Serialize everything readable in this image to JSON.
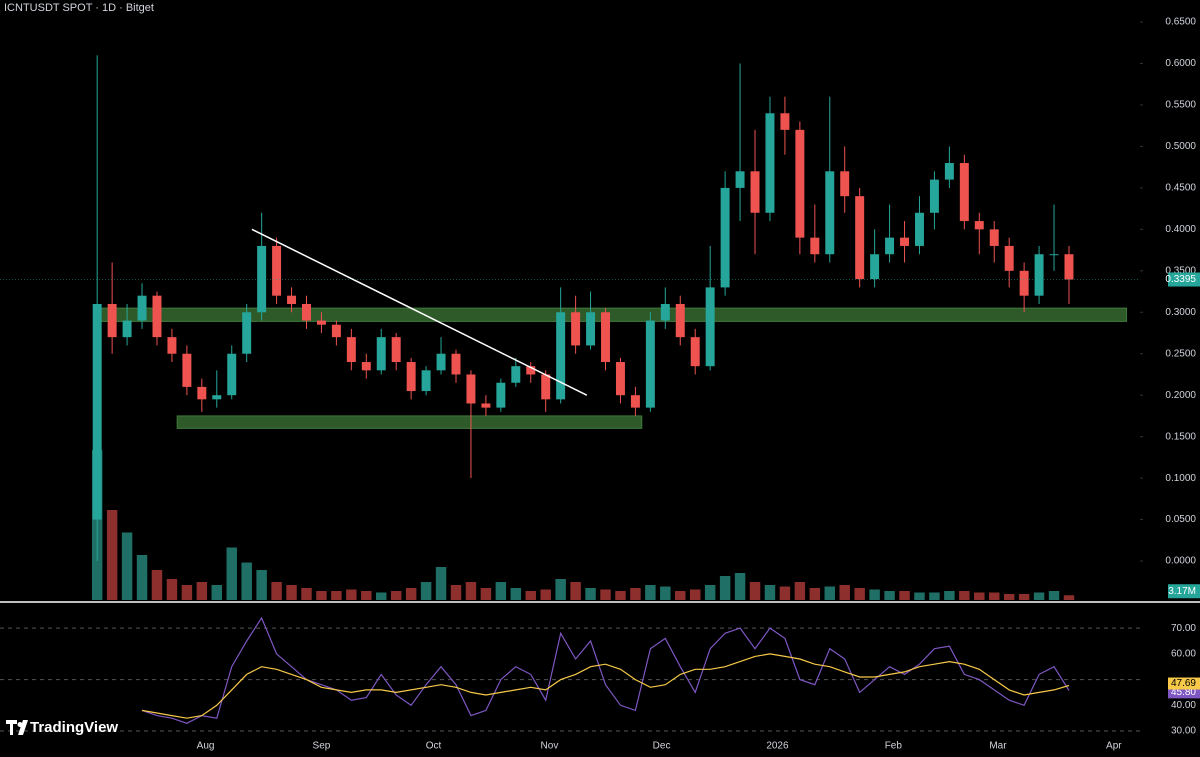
{
  "chart_data": [
    {
      "type": "candlestick",
      "title": "ICNTUSDT SPOT · 1D · Bitget",
      "watermark": "TradingView",
      "x": [
        0,
        4,
        8,
        12,
        16,
        20,
        24,
        28,
        32,
        36,
        40,
        44,
        48,
        52,
        56,
        60,
        64,
        68,
        72,
        76,
        80,
        84,
        88,
        92,
        96,
        100,
        104,
        108,
        112,
        116,
        120,
        124,
        128,
        132,
        136,
        140,
        144,
        148,
        152,
        156,
        160,
        164,
        168,
        172,
        176,
        180,
        184,
        188,
        192,
        196,
        200,
        204,
        208,
        212,
        216,
        220,
        224,
        228,
        232,
        236,
        240,
        244,
        248,
        252,
        256,
        260
      ],
      "xlim": [
        -26,
        279
      ],
      "xticks": [
        {
          "value": 29,
          "label": "Aug"
        },
        {
          "value": 60,
          "label": "Sep"
        },
        {
          "value": 90,
          "label": "Oct"
        },
        {
          "value": 121,
          "label": "Nov"
        },
        {
          "value": 151,
          "label": "Dec"
        },
        {
          "value": 182,
          "label": "2026"
        },
        {
          "value": 213,
          "label": "Feb"
        },
        {
          "value": 241,
          "label": "Mar"
        },
        {
          "value": 272,
          "label": "Apr"
        }
      ],
      "ylim": [
        -0.047,
        0.6766
      ],
      "yticks": [
        {
          "value": 0,
          "label": "0.0000"
        },
        {
          "value": 0.05,
          "label": "0.0500"
        },
        {
          "value": 0.1,
          "label": "0.1000"
        },
        {
          "value": 0.15,
          "label": "0.1500"
        },
        {
          "value": 0.2,
          "label": "0.2000"
        },
        {
          "value": 0.25,
          "label": "0.2500"
        },
        {
          "value": 0.3,
          "label": "0.3000"
        },
        {
          "value": 0.35,
          "label": "0.3500"
        },
        {
          "value": 0.4,
          "label": "0.4000"
        },
        {
          "value": 0.45,
          "label": "0.4500"
        },
        {
          "value": 0.5,
          "label": "0.5000"
        },
        {
          "value": 0.55,
          "label": "0.5500"
        },
        {
          "value": 0.6,
          "label": "0.6000"
        },
        {
          "value": 0.65,
          "label": "0.6500"
        }
      ],
      "series": [
        {
          "up_color": "#26a69a",
          "down_color": "#ef5350",
          "open": [
            0.05,
            0.31,
            0.27,
            0.29,
            0.32,
            0.27,
            0.25,
            0.21,
            0.195,
            0.2,
            0.25,
            0.3,
            0.38,
            0.32,
            0.31,
            0.29,
            0.285,
            0.27,
            0.24,
            0.23,
            0.27,
            0.24,
            0.205,
            0.23,
            0.25,
            0.225,
            0.19,
            0.185,
            0.215,
            0.235,
            0.225,
            0.195,
            0.3,
            0.26,
            0.3,
            0.24,
            0.2,
            0.185,
            0.29,
            0.31,
            0.27,
            0.235,
            0.33,
            0.45,
            0.47,
            0.42,
            0.54,
            0.52,
            0.39,
            0.37,
            0.47,
            0.44,
            0.34,
            0.37,
            0.39,
            0.38,
            0.42,
            0.46,
            0.48,
            0.41,
            0.4,
            0.38,
            0.35,
            0.32,
            0.37,
            0.37
          ],
          "high": [
            0.61,
            0.36,
            0.31,
            0.335,
            0.325,
            0.28,
            0.26,
            0.22,
            0.23,
            0.26,
            0.31,
            0.42,
            0.39,
            0.33,
            0.32,
            0.3,
            0.29,
            0.28,
            0.25,
            0.28,
            0.275,
            0.245,
            0.235,
            0.27,
            0.255,
            0.23,
            0.2,
            0.22,
            0.245,
            0.24,
            0.23,
            0.33,
            0.32,
            0.325,
            0.305,
            0.245,
            0.21,
            0.3,
            0.33,
            0.32,
            0.28,
            0.38,
            0.47,
            0.6,
            0.52,
            0.56,
            0.56,
            0.53,
            0.43,
            0.56,
            0.5,
            0.45,
            0.4,
            0.43,
            0.41,
            0.44,
            0.47,
            0.5,
            0.49,
            0.42,
            0.41,
            0.39,
            0.36,
            0.38,
            0.43,
            0.38
          ],
          "low": [
            0,
            0.25,
            0.26,
            0.28,
            0.26,
            0.24,
            0.2,
            0.18,
            0.185,
            0.195,
            0.24,
            0.29,
            0.31,
            0.3,
            0.28,
            0.275,
            0.26,
            0.23,
            0.22,
            0.225,
            0.23,
            0.195,
            0.2,
            0.225,
            0.215,
            0.1,
            0.175,
            0.18,
            0.21,
            0.215,
            0.18,
            0.19,
            0.25,
            0.255,
            0.23,
            0.19,
            0.175,
            0.18,
            0.28,
            0.26,
            0.225,
            0.23,
            0.32,
            0.41,
            0.37,
            0.41,
            0.49,
            0.37,
            0.36,
            0.36,
            0.42,
            0.33,
            0.33,
            0.36,
            0.36,
            0.37,
            0.4,
            0.45,
            0.4,
            0.37,
            0.36,
            0.33,
            0.3,
            0.31,
            0.35,
            0.31
          ],
          "close": [
            0.31,
            0.27,
            0.29,
            0.32,
            0.27,
            0.25,
            0.21,
            0.195,
            0.2,
            0.25,
            0.3,
            0.38,
            0.32,
            0.31,
            0.29,
            0.285,
            0.27,
            0.24,
            0.23,
            0.27,
            0.24,
            0.205,
            0.23,
            0.25,
            0.225,
            0.19,
            0.185,
            0.215,
            0.235,
            0.225,
            0.195,
            0.3,
            0.26,
            0.3,
            0.24,
            0.2,
            0.185,
            0.29,
            0.31,
            0.27,
            0.235,
            0.33,
            0.45,
            0.47,
            0.42,
            0.54,
            0.52,
            0.39,
            0.37,
            0.47,
            0.44,
            0.34,
            0.37,
            0.39,
            0.38,
            0.42,
            0.46,
            0.48,
            0.41,
            0.4,
            0.38,
            0.35,
            0.32,
            0.37,
            0.37,
            0.3395
          ]
        }
      ],
      "volume": {
        "ylim": [
          0,
          400
        ],
        "up_color": "#1f6f66",
        "down_color": "#8c2f2d",
        "last_label": "3.17M",
        "values": [
          100,
          60,
          45,
          30,
          20,
          14,
          10,
          12,
          10,
          35,
          25,
          20,
          12,
          10,
          8,
          6,
          6,
          7,
          6,
          5,
          6,
          8,
          12,
          22,
          10,
          12,
          8,
          12,
          8,
          6,
          7,
          14,
          12,
          8,
          7,
          6,
          8,
          10,
          9,
          6,
          7,
          10,
          16,
          18,
          12,
          10,
          9,
          12,
          8,
          9,
          10,
          8,
          7,
          6,
          6,
          5,
          5,
          6,
          6,
          5,
          5,
          4,
          4,
          5,
          6,
          3.17
        ]
      },
      "zones": [
        {
          "x": [
            0,
            275.4
          ],
          "y": [
            0.289,
            0.305
          ],
          "color": "#2e5a2a"
        },
        {
          "x": [
            21.4,
            145.7
          ],
          "y": [
            0.16,
            0.175
          ],
          "color": "#2e5a2a"
        }
      ],
      "trendline": {
        "x": [
          41.4,
          131
        ],
        "y": [
          0.4,
          0.2
        ],
        "color": "#ffffff"
      }
    },
    {
      "type": "line",
      "ylim": [
        19.9,
        79
      ],
      "yticks": [
        {
          "value": 30,
          "label": "30.00"
        },
        {
          "value": 40,
          "label": "40.00"
        },
        {
          "value": 60,
          "label": "60.00"
        },
        {
          "value": 70,
          "label": "70.00"
        }
      ],
      "levels": [
        30,
        50,
        70
      ],
      "series": [
        {
          "color": "#7e57c2",
          "last_label": "45.80",
          "values": [
            null,
            null,
            null,
            38,
            36,
            35,
            33,
            36,
            35,
            55,
            65,
            74,
            60,
            55,
            50,
            48,
            46,
            42,
            43,
            52,
            44,
            40,
            48,
            55,
            48,
            36,
            38,
            50,
            55,
            52,
            42,
            68,
            58,
            65,
            48,
            40,
            38,
            62,
            66,
            55,
            45,
            62,
            68,
            70,
            62,
            70,
            66,
            50,
            48,
            62,
            58,
            45,
            50,
            55,
            52,
            56,
            62,
            63,
            52,
            50,
            46,
            42,
            40,
            52,
            55,
            45.8
          ]
        },
        {
          "color": "#f7c948",
          "last_label": "47.69",
          "values": [
            null,
            null,
            null,
            38,
            37,
            36,
            35,
            36,
            40,
            46,
            52,
            55,
            54,
            52,
            50,
            47,
            46,
            45,
            46,
            46,
            45,
            46,
            47,
            48,
            47,
            45,
            44,
            45,
            46,
            47,
            46,
            50,
            52,
            55,
            56,
            54,
            50,
            47,
            48,
            52,
            54,
            54,
            55,
            57,
            59,
            60,
            59,
            58,
            56,
            55,
            53,
            51,
            51,
            52,
            53,
            55,
            56,
            57,
            56,
            54,
            50,
            46,
            44,
            45,
            46,
            47.69
          ]
        }
      ]
    }
  ]
}
